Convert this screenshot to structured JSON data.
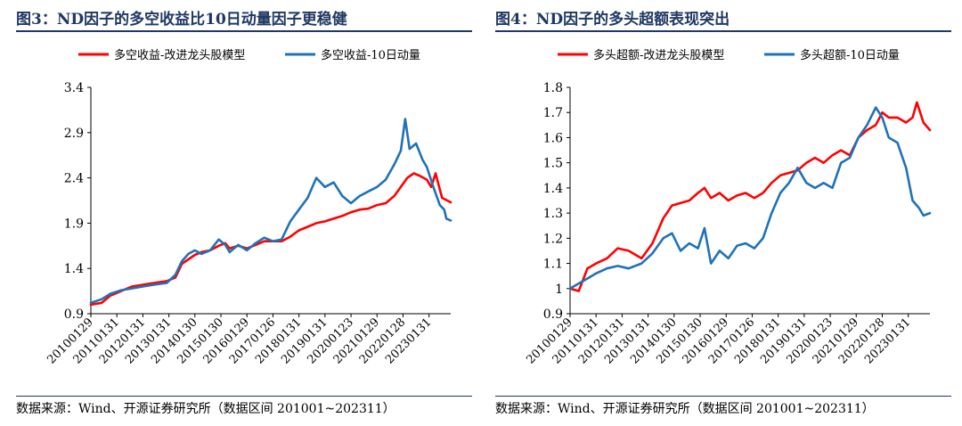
{
  "figures": [
    {
      "title": "图3：ND因子的多空收益比10日动量因子更稳健",
      "source": "数据来源：Wind、开源证券研究所（数据区间 201001~202311）"
    },
    {
      "title": "图4：ND因子的多头超额表现突出",
      "source": "数据来源：Wind、开源证券研究所（数据区间 201001~202311）"
    }
  ],
  "chart_data": [
    {
      "type": "line",
      "title": "",
      "xlabel": "",
      "ylabel": "",
      "x_ticks": [
        "20100129",
        "20110131",
        "20120131",
        "20130131",
        "20140130",
        "20150130",
        "20160129",
        "20170126",
        "20180131",
        "20190131",
        "20200123",
        "20210129",
        "20220128",
        "20230131"
      ],
      "x_range": [
        "2010-01",
        "2023-11"
      ],
      "ylim": [
        0.9,
        3.4
      ],
      "y_ticks": [
        "0.9",
        "1.4",
        "1.9",
        "2.4",
        "2.9",
        "3.4"
      ],
      "grid": false,
      "legend_position": "top",
      "series": [
        {
          "name": "多空收益-改进龙头股模型",
          "color": "#ff0000",
          "points": [
            [
              "2010-01",
              1.0
            ],
            [
              "2010-06",
              1.02
            ],
            [
              "2010-10",
              1.1
            ],
            [
              "2011-03",
              1.15
            ],
            [
              "2011-08",
              1.2
            ],
            [
              "2012-01",
              1.22
            ],
            [
              "2012-06",
              1.24
            ],
            [
              "2012-12",
              1.26
            ],
            [
              "2013-04",
              1.3
            ],
            [
              "2013-07",
              1.45
            ],
            [
              "2013-10",
              1.5
            ],
            [
              "2014-01",
              1.55
            ],
            [
              "2014-04",
              1.58
            ],
            [
              "2014-08",
              1.6
            ],
            [
              "2014-12",
              1.65
            ],
            [
              "2015-03",
              1.68
            ],
            [
              "2015-05",
              1.62
            ],
            [
              "2015-09",
              1.65
            ],
            [
              "2016-01",
              1.62
            ],
            [
              "2016-05",
              1.66
            ],
            [
              "2016-09",
              1.7
            ],
            [
              "2017-01",
              1.7
            ],
            [
              "2017-05",
              1.7
            ],
            [
              "2017-09",
              1.75
            ],
            [
              "2018-01",
              1.82
            ],
            [
              "2018-05",
              1.86
            ],
            [
              "2018-09",
              1.9
            ],
            [
              "2019-01",
              1.92
            ],
            [
              "2019-05",
              1.95
            ],
            [
              "2019-09",
              1.98
            ],
            [
              "2020-01",
              2.02
            ],
            [
              "2020-05",
              2.05
            ],
            [
              "2020-09",
              2.06
            ],
            [
              "2021-01",
              2.1
            ],
            [
              "2021-05",
              2.12
            ],
            [
              "2021-09",
              2.2
            ],
            [
              "2021-12",
              2.3
            ],
            [
              "2022-03",
              2.4
            ],
            [
              "2022-06",
              2.45
            ],
            [
              "2022-09",
              2.42
            ],
            [
              "2022-12",
              2.38
            ],
            [
              "2023-02",
              2.3
            ],
            [
              "2023-04",
              2.45
            ],
            [
              "2023-07",
              2.18
            ],
            [
              "2023-11",
              2.13
            ]
          ]
        },
        {
          "name": "多空收益-10日动量",
          "color": "#1f72b8",
          "points": [
            [
              "2010-01",
              1.02
            ],
            [
              "2010-06",
              1.06
            ],
            [
              "2010-10",
              1.12
            ],
            [
              "2011-03",
              1.16
            ],
            [
              "2011-08",
              1.18
            ],
            [
              "2012-01",
              1.2
            ],
            [
              "2012-06",
              1.22
            ],
            [
              "2012-12",
              1.24
            ],
            [
              "2013-04",
              1.33
            ],
            [
              "2013-07",
              1.48
            ],
            [
              "2013-10",
              1.56
            ],
            [
              "2014-01",
              1.6
            ],
            [
              "2014-04",
              1.56
            ],
            [
              "2014-08",
              1.6
            ],
            [
              "2014-12",
              1.72
            ],
            [
              "2015-03",
              1.66
            ],
            [
              "2015-05",
              1.58
            ],
            [
              "2015-09",
              1.66
            ],
            [
              "2016-01",
              1.6
            ],
            [
              "2016-05",
              1.68
            ],
            [
              "2016-09",
              1.74
            ],
            [
              "2017-01",
              1.7
            ],
            [
              "2017-05",
              1.72
            ],
            [
              "2017-09",
              1.92
            ],
            [
              "2018-01",
              2.05
            ],
            [
              "2018-05",
              2.18
            ],
            [
              "2018-09",
              2.4
            ],
            [
              "2019-01",
              2.3
            ],
            [
              "2019-05",
              2.35
            ],
            [
              "2019-09",
              2.2
            ],
            [
              "2020-01",
              2.12
            ],
            [
              "2020-05",
              2.2
            ],
            [
              "2020-09",
              2.25
            ],
            [
              "2021-01",
              2.3
            ],
            [
              "2021-05",
              2.38
            ],
            [
              "2021-09",
              2.55
            ],
            [
              "2021-12",
              2.7
            ],
            [
              "2022-02",
              3.05
            ],
            [
              "2022-04",
              2.72
            ],
            [
              "2022-07",
              2.78
            ],
            [
              "2022-10",
              2.6
            ],
            [
              "2022-12",
              2.52
            ],
            [
              "2023-03",
              2.3
            ],
            [
              "2023-06",
              2.1
            ],
            [
              "2023-08",
              2.05
            ],
            [
              "2023-09",
              1.95
            ],
            [
              "2023-11",
              1.93
            ]
          ]
        }
      ]
    },
    {
      "type": "line",
      "title": "",
      "xlabel": "",
      "ylabel": "",
      "x_ticks": [
        "20100129",
        "20110131",
        "20120131",
        "20130131",
        "20140130",
        "20150130",
        "20160129",
        "20170126",
        "20180131",
        "20190131",
        "20200123",
        "20210129",
        "20220128",
        "20230131"
      ],
      "x_range": [
        "2010-01",
        "2023-11"
      ],
      "ylim": [
        0.9,
        1.8
      ],
      "y_ticks": [
        "0.9",
        "1",
        "1.1",
        "1.2",
        "1.3",
        "1.4",
        "1.5",
        "1.6",
        "1.7",
        "1.8"
      ],
      "grid": false,
      "legend_position": "top",
      "series": [
        {
          "name": "多头超额-改进龙头股模型",
          "color": "#ff0000",
          "points": [
            [
              "2010-01",
              1.0
            ],
            [
              "2010-05",
              0.99
            ],
            [
              "2010-09",
              1.08
            ],
            [
              "2011-01",
              1.1
            ],
            [
              "2011-06",
              1.12
            ],
            [
              "2011-11",
              1.16
            ],
            [
              "2012-04",
              1.15
            ],
            [
              "2012-10",
              1.12
            ],
            [
              "2013-03",
              1.18
            ],
            [
              "2013-08",
              1.28
            ],
            [
              "2013-12",
              1.33
            ],
            [
              "2014-04",
              1.34
            ],
            [
              "2014-08",
              1.35
            ],
            [
              "2014-12",
              1.38
            ],
            [
              "2015-03",
              1.4
            ],
            [
              "2015-06",
              1.36
            ],
            [
              "2015-10",
              1.38
            ],
            [
              "2016-02",
              1.35
            ],
            [
              "2016-06",
              1.37
            ],
            [
              "2016-10",
              1.38
            ],
            [
              "2017-02",
              1.36
            ],
            [
              "2017-06",
              1.38
            ],
            [
              "2017-10",
              1.42
            ],
            [
              "2018-02",
              1.45
            ],
            [
              "2018-06",
              1.46
            ],
            [
              "2018-10",
              1.47
            ],
            [
              "2019-02",
              1.5
            ],
            [
              "2019-06",
              1.52
            ],
            [
              "2019-10",
              1.5
            ],
            [
              "2020-02",
              1.53
            ],
            [
              "2020-06",
              1.55
            ],
            [
              "2020-10",
              1.53
            ],
            [
              "2021-02",
              1.6
            ],
            [
              "2021-06",
              1.63
            ],
            [
              "2021-10",
              1.65
            ],
            [
              "2022-01",
              1.7
            ],
            [
              "2022-04",
              1.68
            ],
            [
              "2022-08",
              1.68
            ],
            [
              "2022-12",
              1.66
            ],
            [
              "2023-03",
              1.68
            ],
            [
              "2023-05",
              1.74
            ],
            [
              "2023-08",
              1.66
            ],
            [
              "2023-11",
              1.63
            ]
          ]
        },
        {
          "name": "多头超额-10日动量",
          "color": "#1f72b8",
          "points": [
            [
              "2010-01",
              1.0
            ],
            [
              "2010-05",
              1.02
            ],
            [
              "2010-09",
              1.04
            ],
            [
              "2011-01",
              1.06
            ],
            [
              "2011-06",
              1.08
            ],
            [
              "2011-11",
              1.09
            ],
            [
              "2012-04",
              1.08
            ],
            [
              "2012-10",
              1.1
            ],
            [
              "2013-03",
              1.14
            ],
            [
              "2013-08",
              1.2
            ],
            [
              "2013-12",
              1.22
            ],
            [
              "2014-04",
              1.15
            ],
            [
              "2014-08",
              1.18
            ],
            [
              "2014-12",
              1.16
            ],
            [
              "2015-03",
              1.24
            ],
            [
              "2015-06",
              1.1
            ],
            [
              "2015-10",
              1.15
            ],
            [
              "2016-02",
              1.12
            ],
            [
              "2016-06",
              1.17
            ],
            [
              "2016-10",
              1.18
            ],
            [
              "2017-02",
              1.16
            ],
            [
              "2017-06",
              1.2
            ],
            [
              "2017-10",
              1.3
            ],
            [
              "2018-02",
              1.38
            ],
            [
              "2018-06",
              1.42
            ],
            [
              "2018-10",
              1.48
            ],
            [
              "2019-02",
              1.42
            ],
            [
              "2019-06",
              1.4
            ],
            [
              "2019-10",
              1.42
            ],
            [
              "2020-02",
              1.4
            ],
            [
              "2020-06",
              1.5
            ],
            [
              "2020-10",
              1.52
            ],
            [
              "2021-02",
              1.6
            ],
            [
              "2021-06",
              1.65
            ],
            [
              "2021-10",
              1.72
            ],
            [
              "2022-01",
              1.68
            ],
            [
              "2022-04",
              1.6
            ],
            [
              "2022-08",
              1.58
            ],
            [
              "2022-12",
              1.48
            ],
            [
              "2023-03",
              1.35
            ],
            [
              "2023-06",
              1.32
            ],
            [
              "2023-08",
              1.29
            ],
            [
              "2023-11",
              1.3
            ]
          ]
        }
      ]
    }
  ]
}
